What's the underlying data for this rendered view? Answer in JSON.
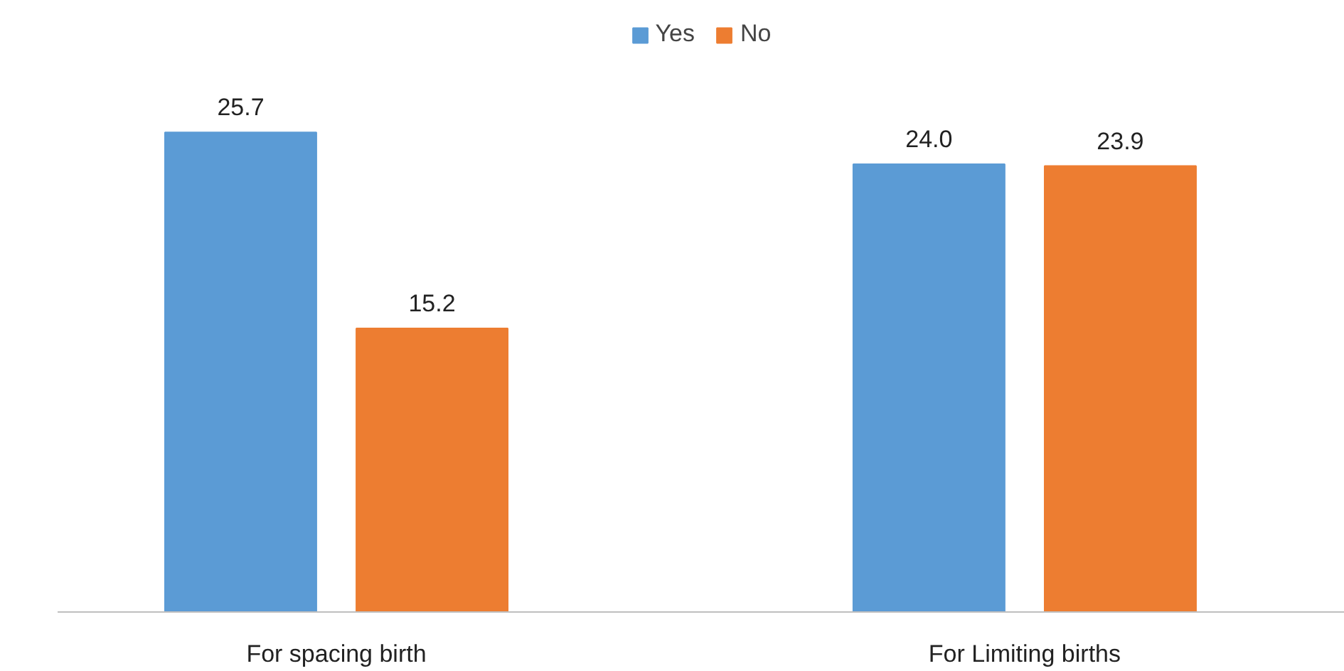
{
  "chart_data": {
    "type": "bar",
    "categories": [
      "For spacing birth",
      "For Limiting births"
    ],
    "series": [
      {
        "name": "Yes",
        "color": "#5b9bd5",
        "values": [
          25.7,
          24.0
        ],
        "value_labels": [
          "25.7",
          "24.0"
        ]
      },
      {
        "name": "No",
        "color": "#ed7d31",
        "values": [
          15.2,
          23.9
        ],
        "value_labels": [
          "15.2",
          "23.9"
        ]
      }
    ],
    "legend": "top",
    "grid": false,
    "tick_labels": "x"
  }
}
